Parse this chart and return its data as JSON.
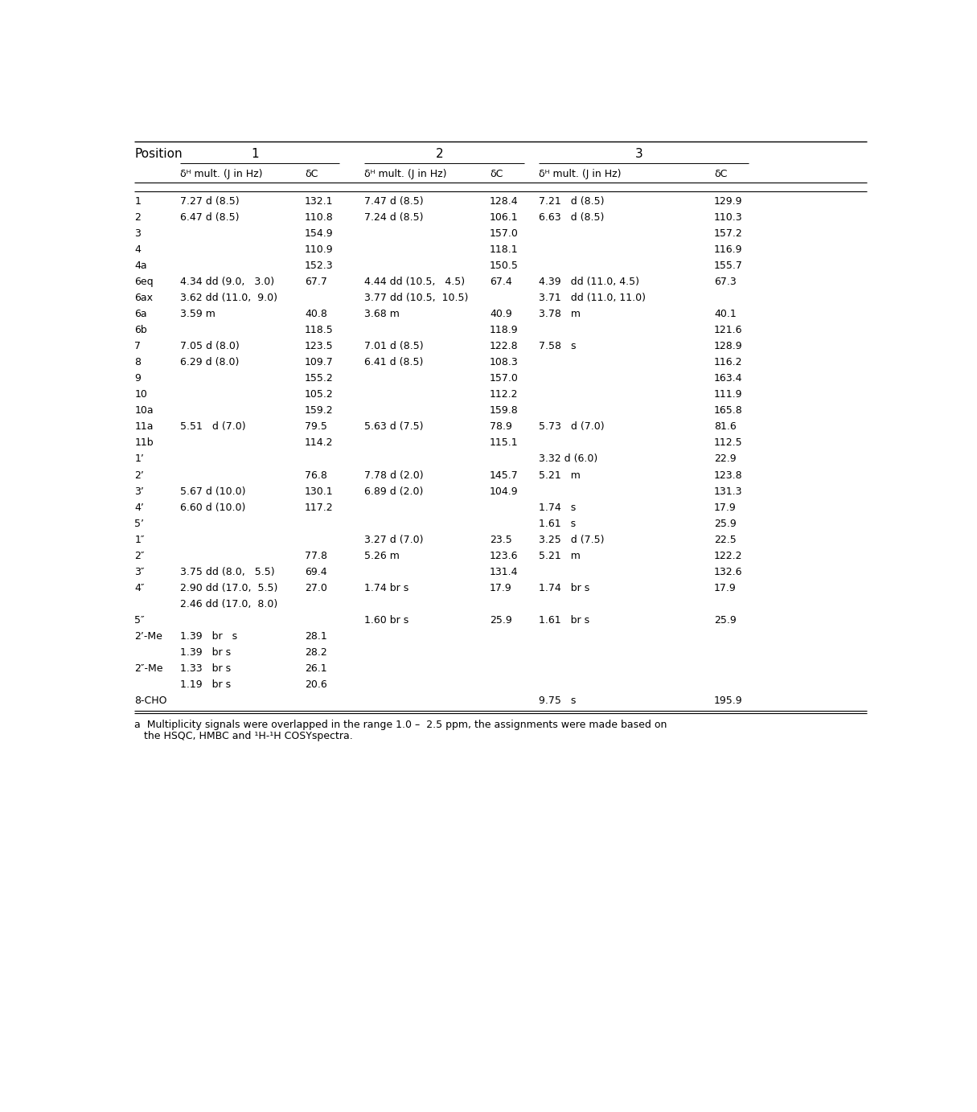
{
  "col_headers_row1_pos": "Position",
  "col_headers_row1_nums": [
    "1",
    "2",
    "3"
  ],
  "col_headers_row2_dH": "δᴴ mult. (J in Hz)",
  "col_headers_row2_dH2": "δᴴ mult. (J in Hz)",
  "col_headers_row2_dC": "δC",
  "rows": [
    [
      "1",
      "7.27 d (8.5)",
      "132.1",
      "7.47 d (8.5)",
      "128.4",
      "7.21   d (8.5)",
      "129.9"
    ],
    [
      "2",
      "6.47 d (8.5)",
      "110.8",
      "7.24 d (8.5)",
      "106.1",
      "6.63   d (8.5)",
      "110.3"
    ],
    [
      "3",
      "",
      "154.9",
      "",
      "157.0",
      "",
      "157.2"
    ],
    [
      "4",
      "",
      "110.9",
      "",
      "118.1",
      "",
      "116.9"
    ],
    [
      "4a",
      "",
      "152.3",
      "",
      "150.5",
      "",
      "155.7"
    ],
    [
      "6eq",
      "4.34 dd (9.0,   3.0)",
      "67.7",
      "4.44 dd (10.5,   4.5)",
      "67.4",
      "4.39   dd (11.0, 4.5)",
      "67.3"
    ],
    [
      "6ax",
      "3.62 dd (11.0,  9.0)",
      "",
      "3.77 dd (10.5,  10.5)",
      "",
      "3.71   dd (11.0, 11.0)",
      ""
    ],
    [
      "6a",
      "3.59 m",
      "40.8",
      "3.68 m",
      "40.9",
      "3.78   m",
      "40.1"
    ],
    [
      "6b",
      "",
      "118.5",
      "",
      "118.9",
      "",
      "121.6"
    ],
    [
      "7",
      "7.05 d (8.0)",
      "123.5",
      "7.01 d (8.5)",
      "122.8",
      "7.58   s",
      "128.9"
    ],
    [
      "8",
      "6.29 d (8.0)",
      "109.7",
      "6.41 d (8.5)",
      "108.3",
      "",
      "116.2"
    ],
    [
      "9",
      "",
      "155.2",
      "",
      "157.0",
      "",
      "163.4"
    ],
    [
      "10",
      "",
      "105.2",
      "",
      "112.2",
      "",
      "111.9"
    ],
    [
      "10a",
      "",
      "159.2",
      "",
      "159.8",
      "",
      "165.8"
    ],
    [
      "11a",
      "5.51   d (7.0)",
      "79.5",
      "5.63 d (7.5)",
      "78.9",
      "5.73   d (7.0)",
      "81.6"
    ],
    [
      "11b",
      "",
      "114.2",
      "",
      "115.1",
      "",
      "112.5"
    ],
    [
      "1’",
      "",
      "",
      "",
      "",
      "3.32 d (6.0)",
      "22.9"
    ],
    [
      "2’",
      "",
      "76.8",
      "7.78 d (2.0)",
      "145.7",
      "5.21   m",
      "123.8"
    ],
    [
      "3’",
      "5.67 d (10.0)",
      "130.1",
      "6.89 d (2.0)",
      "104.9",
      "",
      "131.3"
    ],
    [
      "4’",
      "6.60 d (10.0)",
      "117.2",
      "",
      "",
      "1.74   s",
      "17.9"
    ],
    [
      "5’",
      "",
      "",
      "",
      "",
      "1.61   s",
      "25.9"
    ],
    [
      "1″",
      "",
      "",
      "3.27 d (7.0)",
      "23.5",
      "3.25   d (7.5)",
      "22.5"
    ],
    [
      "2″",
      "",
      "77.8",
      "5.26 m",
      "123.6",
      "5.21   m",
      "122.2"
    ],
    [
      "3″",
      "3.75 dd (8.0,   5.5)",
      "69.4",
      "",
      "131.4",
      "",
      "132.6"
    ],
    [
      "4″",
      "2.90 dd (17.0,  5.5)",
      "27.0",
      "1.74 br s",
      "17.9",
      "1.74   br s",
      "17.9"
    ],
    [
      "",
      "2.46 dd (17.0,  8.0)",
      "",
      "",
      "",
      "",
      ""
    ],
    [
      "5″",
      "",
      "",
      "1.60 br s",
      "25.9",
      "1.61   br s",
      "25.9"
    ],
    [
      "2’-Me",
      "1.39   br   s",
      "28.1",
      "",
      "",
      "",
      ""
    ],
    [
      "",
      "1.39   br s",
      "28.2",
      "",
      "",
      "",
      ""
    ],
    [
      "2″-Me",
      "1.33   br s",
      "26.1",
      "",
      "",
      "",
      ""
    ],
    [
      "",
      "1.19   br s",
      "20.6",
      "",
      "",
      "",
      ""
    ],
    [
      "8-CHO",
      "",
      "",
      "",
      "",
      "9.75   s",
      "195.9"
    ]
  ],
  "footnote_line1": "a  Multiplicity signals were overlapped in the range 1.0 –  2.5 ppm, the assignments were made based on",
  "footnote_line2": "   the HSQC, HMBC and ¹H-¹H COSYspectra.",
  "bg_color": "#ffffff"
}
